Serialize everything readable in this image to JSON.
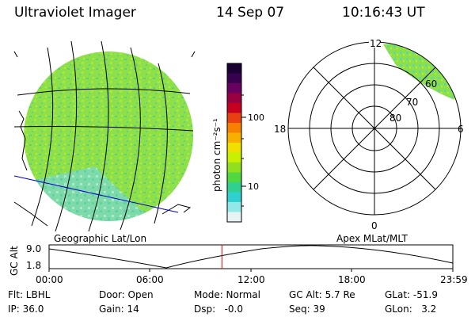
{
  "header": {
    "instrument": "Ultraviolet Imager",
    "date": "14 Sep 07",
    "time": "10:16:43 UT"
  },
  "colorbar": {
    "unit_label": "photon cm⁻²s⁻¹",
    "tick_100": "100",
    "tick_10": "10",
    "colors_top_to_bottom": [
      "#1a0033",
      "#3a0050",
      "#6a0060",
      "#9a0040",
      "#c80020",
      "#e84010",
      "#f88000",
      "#f8b000",
      "#f0e000",
      "#c8f000",
      "#90e020",
      "#50d840",
      "#30d090",
      "#30d0d0",
      "#90e8e8",
      "#e8f4f4"
    ]
  },
  "left_panel": {
    "caption": "Geographic Lat/Lon",
    "fill_color": "#8ee04a"
  },
  "right_panel": {
    "caption": "Apex MLat/MLT",
    "mlt_12": "12",
    "mlt_18": "18",
    "mlt_6": "6",
    "mlt_0": "0",
    "lat_60": "60",
    "lat_70": "70",
    "lat_80": "80"
  },
  "altitude_plot": {
    "ylabel": "GC Alt",
    "y_top": "9.0",
    "y_bottom": "1.8",
    "x_ticks": [
      "00:00",
      "06:00",
      "12:00",
      "18:00",
      "23:59"
    ],
    "marker_color": "#e00000",
    "marker_fraction": 0.428
  },
  "status": {
    "flt": "Flt: LBHL",
    "ip": "IP: 36.0",
    "door": "Door: Open",
    "gain": "Gain: 14",
    "mode": "Mode: Normal",
    "dsp": "Dsp:   -0.0",
    "gc_alt": "GC Alt: 5.7 Re",
    "seq": "Seq: 39",
    "glat": "GLat: -51.9",
    "glon": "GLon:   3.2"
  }
}
